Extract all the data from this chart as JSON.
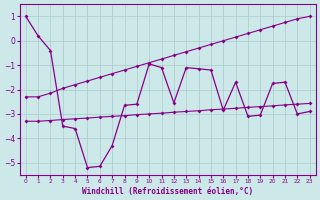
{
  "xlabel": "Windchill (Refroidissement éolien,°C)",
  "background_color": "#cce8e8",
  "line_color": "#880088",
  "grid_color": "#aacccc",
  "x_data": [
    0,
    1,
    2,
    3,
    4,
    5,
    6,
    7,
    8,
    9,
    10,
    11,
    12,
    13,
    14,
    15,
    16,
    17,
    18,
    19,
    20,
    21,
    22,
    23
  ],
  "main_line": [
    1.0,
    0.2,
    -0.4,
    -3.5,
    -3.6,
    -5.2,
    -5.15,
    -4.3,
    -2.65,
    -2.6,
    -0.95,
    -1.1,
    -2.55,
    -1.1,
    -1.15,
    -1.2,
    -2.85,
    -1.7,
    -3.1,
    -3.05,
    -1.75,
    -1.7,
    -3.0,
    -2.9
  ],
  "upper_line": [
    -2.3,
    -2.3,
    -2.15,
    -1.95,
    -1.8,
    -1.65,
    -1.5,
    -1.35,
    -1.2,
    -1.05,
    -0.9,
    -0.75,
    -0.6,
    -0.45,
    -0.3,
    -0.15,
    0.0,
    0.15,
    0.3,
    0.45,
    0.6,
    0.75,
    0.9,
    1.0
  ],
  "lower_line": [
    -3.3,
    -3.3,
    -3.27,
    -3.23,
    -3.2,
    -3.17,
    -3.13,
    -3.1,
    -3.07,
    -3.03,
    -3.0,
    -2.97,
    -2.93,
    -2.9,
    -2.87,
    -2.83,
    -2.8,
    -2.77,
    -2.73,
    -2.7,
    -2.67,
    -2.63,
    -2.6,
    -2.57
  ],
  "ylim": [
    -5.5,
    1.5
  ],
  "xlim": [
    -0.5,
    23.5
  ],
  "yticks": [
    1,
    0,
    -1,
    -2,
    -3,
    -4,
    -5
  ],
  "xticks": [
    0,
    1,
    2,
    3,
    4,
    5,
    6,
    7,
    8,
    9,
    10,
    11,
    12,
    13,
    14,
    15,
    16,
    17,
    18,
    19,
    20,
    21,
    22,
    23
  ]
}
